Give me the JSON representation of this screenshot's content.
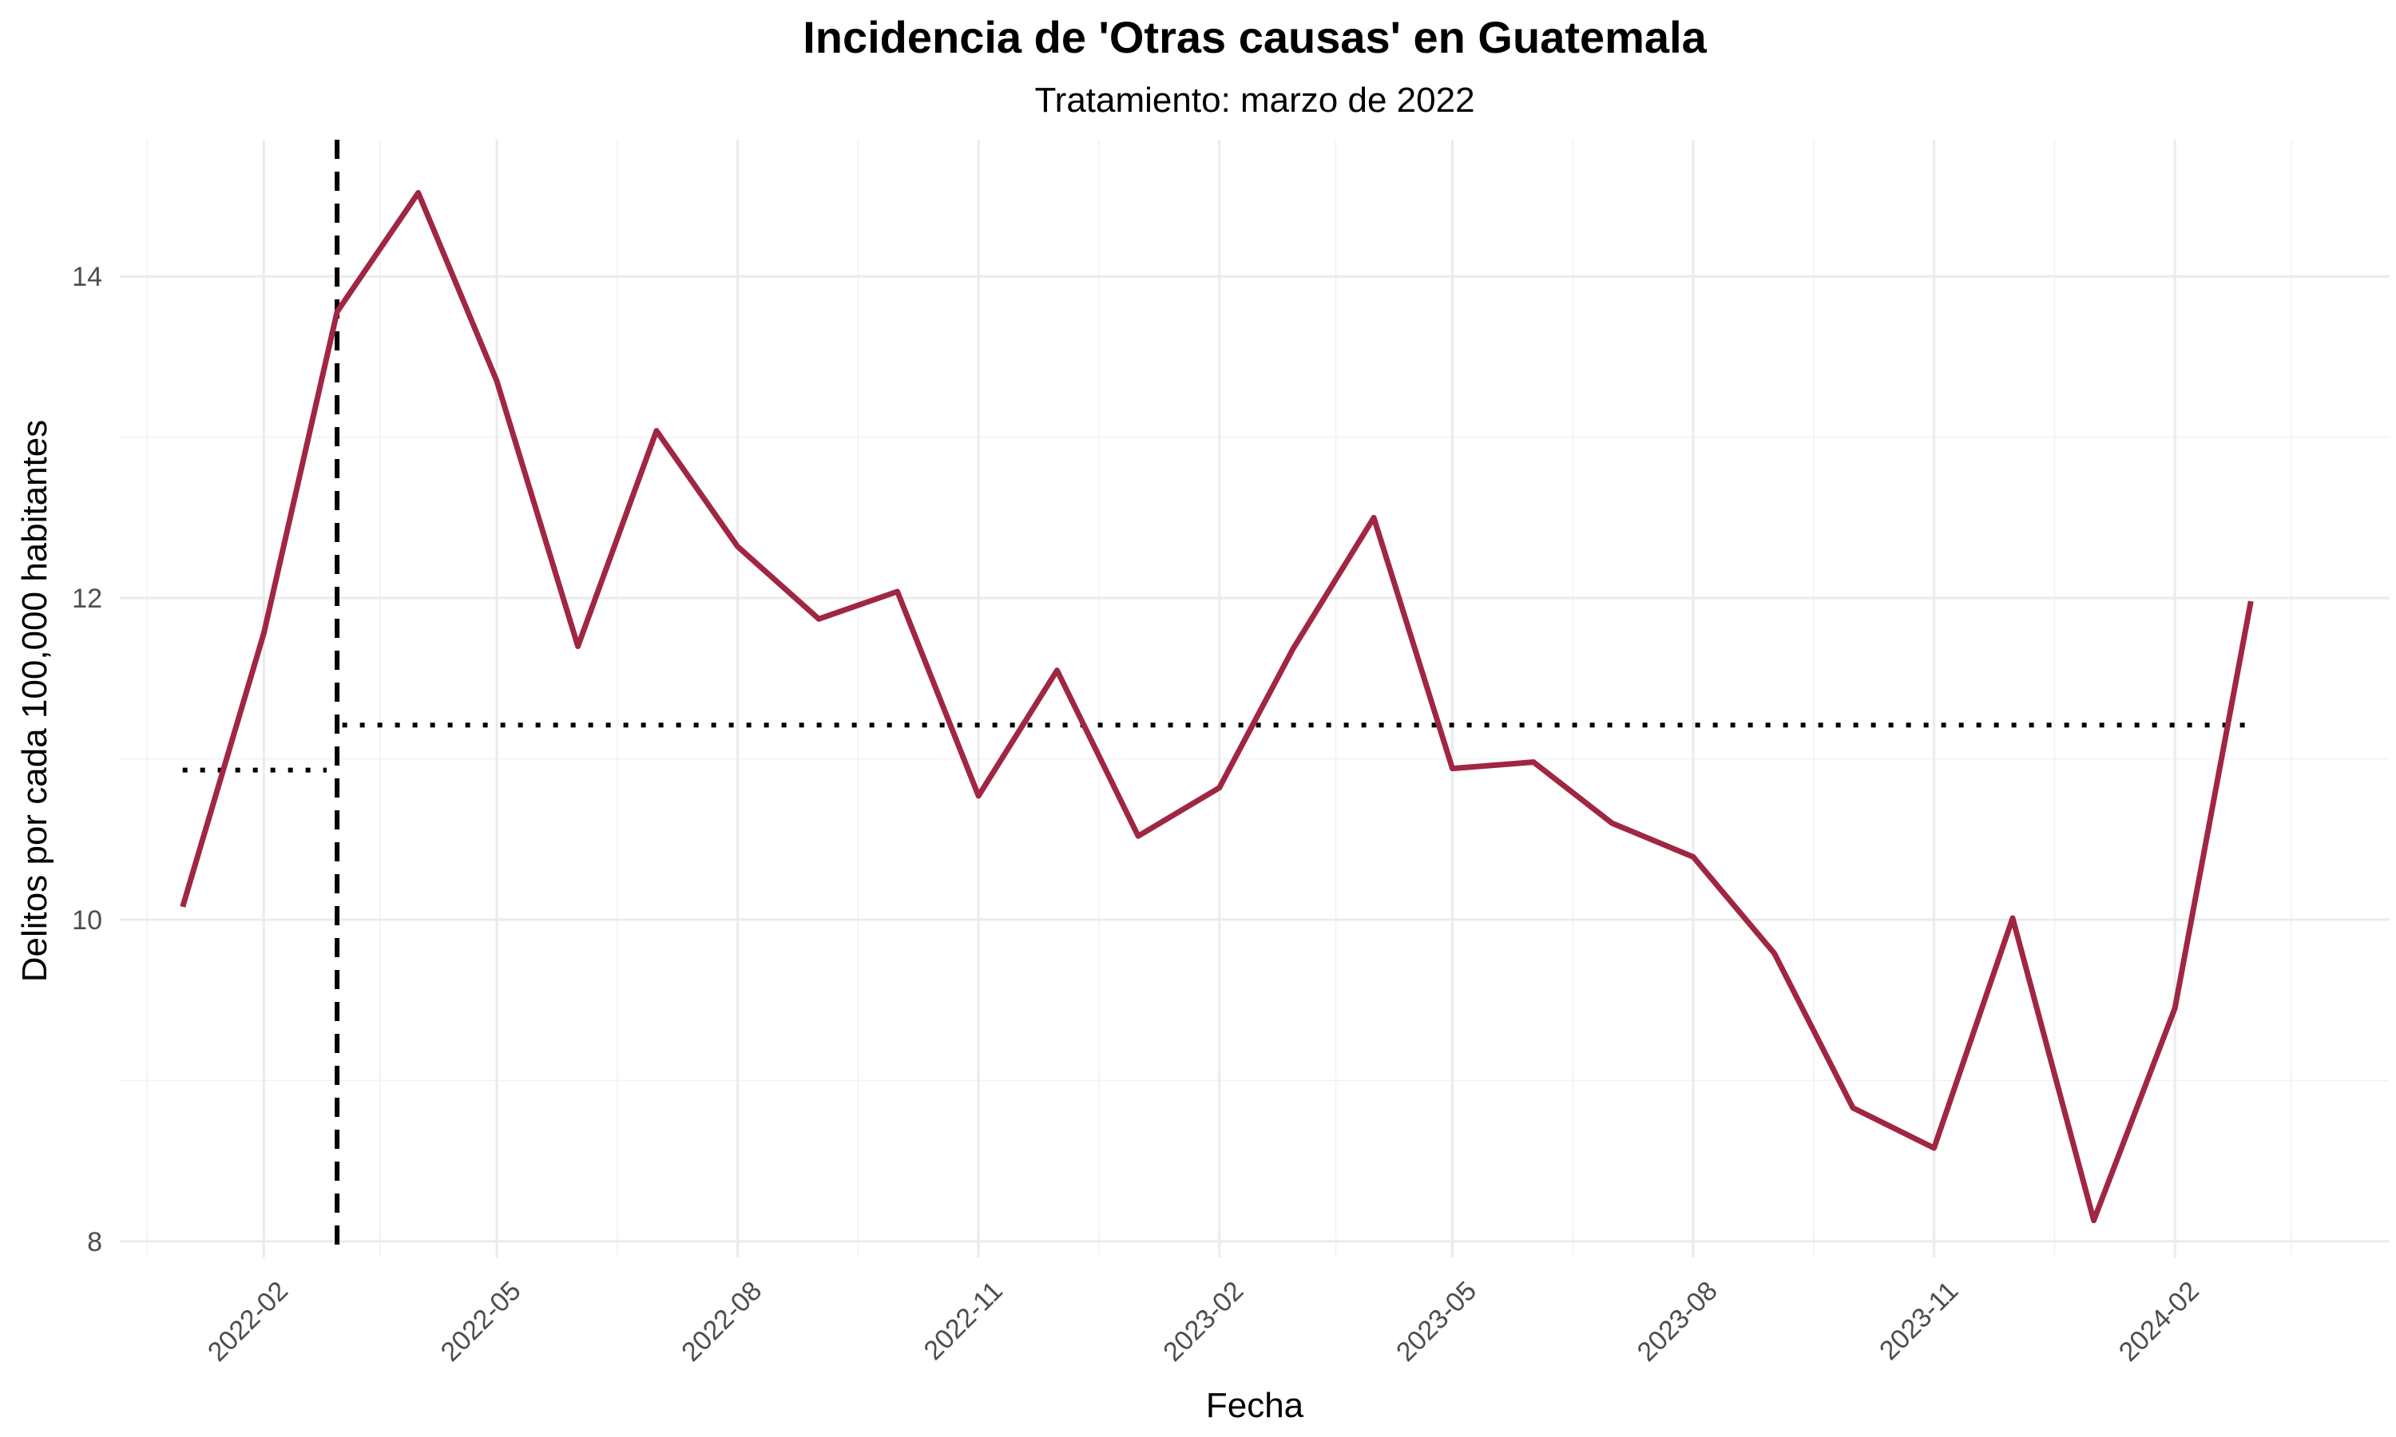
{
  "chart_data": {
    "type": "line",
    "title": "Incidencia de 'Otras causas' en Guatemala",
    "subtitle": "Tratamiento: marzo de 2022",
    "xlabel": "Fecha",
    "ylabel": "Delitos por cada 100,000 habitantes",
    "x_ticks": [
      "2022-02",
      "2022-05",
      "2022-08",
      "2022-11",
      "2023-02",
      "2023-05",
      "2023-08",
      "2023-11",
      "2024-02"
    ],
    "y_ticks": [
      8,
      10,
      12,
      14
    ],
    "ylim": [
      7.9,
      14.85
    ],
    "xlim": [
      "2021-12-08",
      "2024-04-23"
    ],
    "grid": true,
    "legend": "none",
    "series": [
      {
        "color": "#a02642",
        "x": [
          "2022-01-01",
          "2022-02-01",
          "2022-03-01",
          "2022-04-01",
          "2022-05-01",
          "2022-06-01",
          "2022-07-01",
          "2022-08-01",
          "2022-09-01",
          "2022-10-01",
          "2022-11-01",
          "2022-12-01",
          "2023-01-01",
          "2023-02-01",
          "2023-03-01",
          "2023-04-01",
          "2023-05-01",
          "2023-06-01",
          "2023-07-01",
          "2023-08-01",
          "2023-09-01",
          "2023-10-01",
          "2023-11-01",
          "2023-12-01",
          "2024-01-01",
          "2024-02-01",
          "2024-03-01"
        ],
        "values": [
          10.08,
          11.78,
          13.78,
          14.52,
          13.35,
          11.7,
          13.04,
          12.32,
          11.87,
          12.04,
          10.77,
          11.55,
          10.52,
          10.82,
          11.68,
          12.5,
          10.94,
          10.98,
          10.6,
          10.39,
          9.79,
          8.83,
          8.58,
          10.01,
          8.13,
          9.45,
          11.98
        ]
      }
    ],
    "annotations": [
      {
        "kind": "vline",
        "style": "dashed",
        "color": "#000000",
        "x": "2022-03-01"
      },
      {
        "kind": "hsegment",
        "style": "dotted",
        "color": "#000000",
        "x_start": "2022-01-01",
        "x_end": "2022-02-25",
        "y": 10.93
      },
      {
        "kind": "hsegment",
        "style": "dotted",
        "color": "#000000",
        "x_start": "2022-03-03",
        "x_end": "2024-03-01",
        "y": 11.21
      }
    ]
  }
}
